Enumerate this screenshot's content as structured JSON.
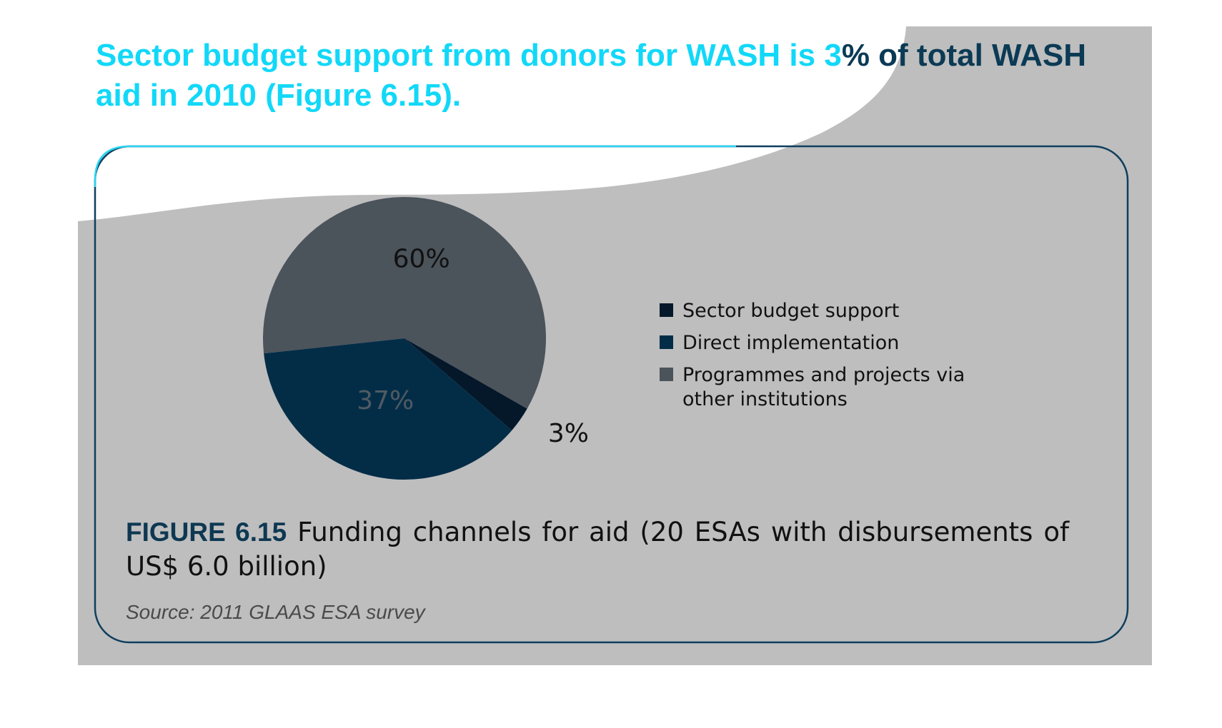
{
  "headline": {
    "part_light": "Sector budget support from donors for WASH is 3",
    "part_dark": "% of total WASH",
    "line2": "aid in 2010 (Figure 6.15)."
  },
  "figure": {
    "label": "FIGURE 6.15",
    "caption": "Funding channels for aid (20 ESAs with disbursements of US$ 6.0 billion)",
    "source": "Source: 2011 GLAAS ESA survey"
  },
  "colors": {
    "overlay": "#5a5a5a",
    "wave": "#bebebe",
    "frame": "#0e3f5e",
    "frame_top": "#29d4f2",
    "headline": "#12d8f8",
    "headline_dark": "#0b3a55"
  },
  "chart_data": {
    "type": "pie",
    "slices": [
      {
        "name": "Sector budget support",
        "value": 3,
        "label": "3%",
        "color": "#04182a",
        "label_color": "#111111"
      },
      {
        "name": "Direct implementation",
        "value": 37,
        "label": "37%",
        "color": "#032d47",
        "label_color": "#4f5a64"
      },
      {
        "name": "Programmes and projects via other institutions",
        "value": 60,
        "label": "60%",
        "color": "#4b535b",
        "label_color": "#111111"
      }
    ],
    "legend": {
      "placement": "right",
      "items": [
        {
          "lines": [
            "Sector budget support"
          ],
          "color": "#04182a"
        },
        {
          "lines": [
            "Direct implementation"
          ],
          "color": "#032d47"
        },
        {
          "lines": [
            "Programmes and projects via",
            "other institutions"
          ],
          "color": "#4b535b"
        }
      ]
    }
  }
}
